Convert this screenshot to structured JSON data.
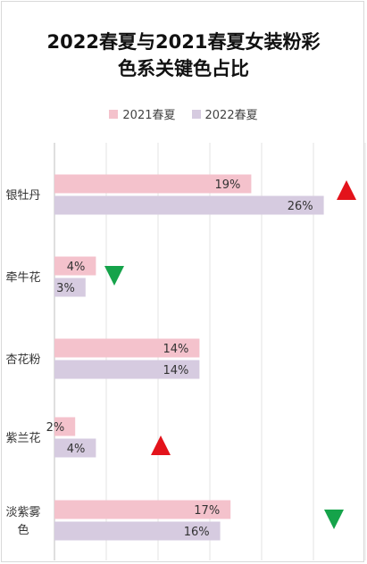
{
  "chart_data": {
    "type": "bar",
    "orientation": "horizontal",
    "title_line1": "2022春夏与2021春夏女装粉彩",
    "title_line2": "色系关键色占比",
    "categories": [
      "银牡丹",
      "牵牛花",
      "杏花粉",
      "紫兰花",
      "淡紫雾色"
    ],
    "series": [
      {
        "name": "2021春夏",
        "color": "#f4c2cc",
        "values": [
          19,
          4,
          14,
          2,
          17
        ],
        "labels": [
          "19%",
          "4%",
          "14%",
          "2%",
          "17%"
        ]
      },
      {
        "name": "2022春夏",
        "color": "#d6cbe0",
        "values": [
          26,
          3,
          14,
          4,
          16
        ],
        "labels": [
          "26%",
          "3%",
          "14%",
          "4%",
          "16%"
        ]
      }
    ],
    "xlim": [
      0,
      30
    ],
    "grid": true,
    "legend_position": "top",
    "trend_markers": [
      {
        "category": "银牡丹",
        "direction": "up",
        "color": "#e3131b"
      },
      {
        "category": "牵牛花",
        "direction": "down",
        "color": "#15a34a"
      },
      {
        "category": "紫兰花",
        "direction": "up",
        "color": "#e3131b"
      },
      {
        "category": "淡紫雾色",
        "direction": "down",
        "color": "#15a34a"
      }
    ]
  }
}
